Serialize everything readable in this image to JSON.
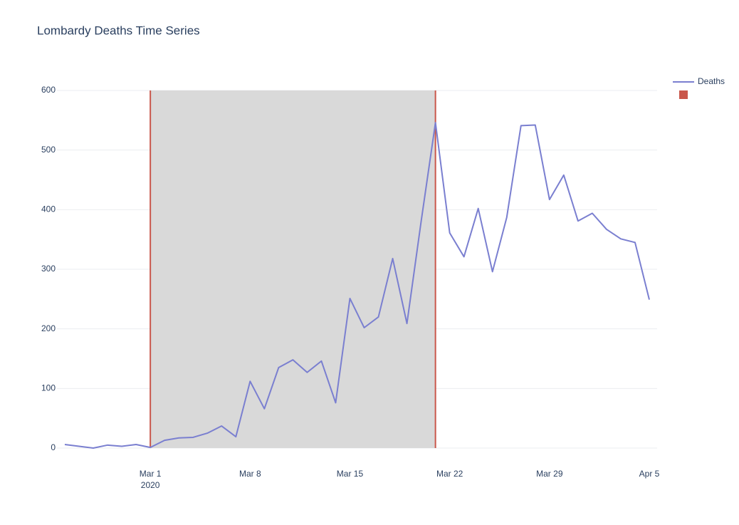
{
  "chart_data": {
    "type": "line",
    "title": "Lombardy Deaths Time Series",
    "x": [
      "2020-02-24",
      "2020-02-25",
      "2020-02-26",
      "2020-02-27",
      "2020-02-28",
      "2020-02-29",
      "2020-03-01",
      "2020-03-02",
      "2020-03-03",
      "2020-03-04",
      "2020-03-05",
      "2020-03-06",
      "2020-03-07",
      "2020-03-08",
      "2020-03-09",
      "2020-03-10",
      "2020-03-11",
      "2020-03-12",
      "2020-03-13",
      "2020-03-14",
      "2020-03-15",
      "2020-03-16",
      "2020-03-17",
      "2020-03-18",
      "2020-03-19",
      "2020-03-20",
      "2020-03-21",
      "2020-03-22",
      "2020-03-23",
      "2020-03-24",
      "2020-03-25",
      "2020-03-26",
      "2020-03-27",
      "2020-03-28",
      "2020-03-29",
      "2020-03-30",
      "2020-03-31",
      "2020-04-01",
      "2020-04-02",
      "2020-04-03",
      "2020-04-04",
      "2020-04-05"
    ],
    "series": [
      {
        "name": "Deaths",
        "color": "#7a7fd0",
        "values": [
          6,
          3,
          0,
          5,
          3,
          6,
          1,
          13,
          17,
          18,
          25,
          37,
          19,
          112,
          66,
          135,
          148,
          127,
          146,
          76,
          251,
          202,
          220,
          318,
          209,
          381,
          546,
          361,
          321,
          402,
          296,
          387,
          541,
          542,
          417,
          458,
          381,
          394,
          367,
          351,
          345,
          249
        ]
      }
    ],
    "shaded_region": {
      "x0": "2020-03-01",
      "x1": "2020-03-21",
      "fill": "#d9d9d9",
      "line_color": "#c9574b"
    },
    "xlim": [
      "2020-02-24",
      "2020-04-05"
    ],
    "xticks": [
      {
        "value": "2020-03-01",
        "label": "Mar 1"
      },
      {
        "value": "2020-03-08",
        "label": "Mar 8"
      },
      {
        "value": "2020-03-15",
        "label": "Mar 15"
      },
      {
        "value": "2020-03-22",
        "label": "Mar 22"
      },
      {
        "value": "2020-03-29",
        "label": "Mar 29"
      },
      {
        "value": "2020-04-05",
        "label": "Apr 5"
      }
    ],
    "xtick_year": "2020",
    "ylim": [
      0,
      600
    ],
    "yticks": [
      0,
      100,
      200,
      300,
      400,
      500,
      600
    ],
    "grid": true
  }
}
